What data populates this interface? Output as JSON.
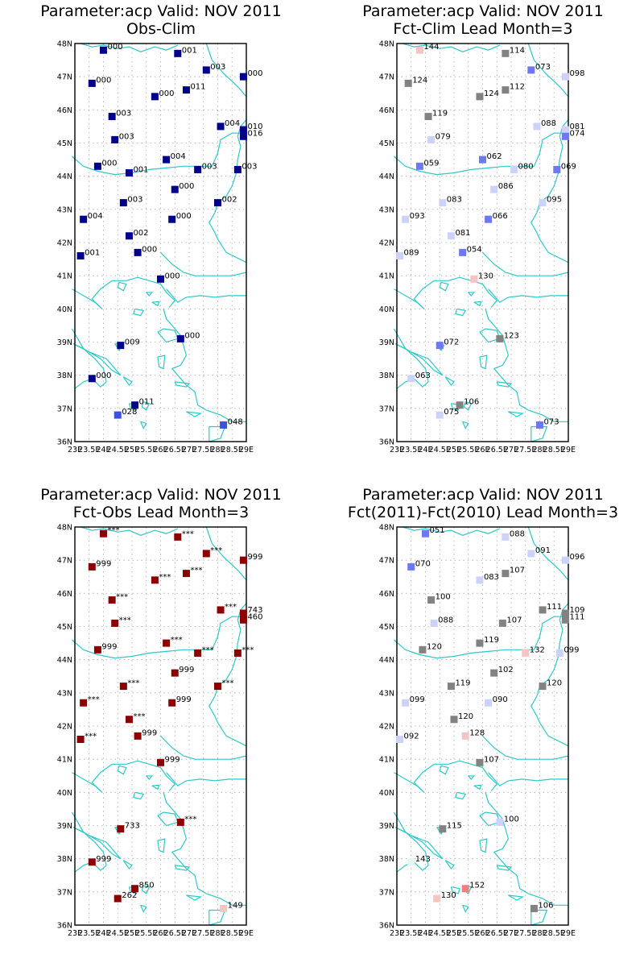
{
  "colors": {
    "coast": "#2ec8c8",
    "grid": "#aaaaaa"
  },
  "ylabels": [
    "36N",
    "37N",
    "38N",
    "39N",
    "40N",
    "41N",
    "42N",
    "43N",
    "44N",
    "45N",
    "46N",
    "47N",
    "48N"
  ],
  "xlabels": [
    "23E",
    "23.5E",
    "24E",
    "24.5E",
    "25E",
    "25.5E",
    "26E",
    "26.5E",
    "27E",
    "27.5E",
    "28E",
    "28.5E",
    "29E"
  ],
  "panels": [
    {
      "title1": "Parameter:acp Valid: NOV 2011",
      "title2": "Obs-Clim",
      "markers": [
        {
          "lon": 24.0,
          "lat": 47.8,
          "color": "#00008b",
          "label": "000"
        },
        {
          "lon": 26.6,
          "lat": 47.7,
          "color": "#00008b",
          "label": "001"
        },
        {
          "lon": 27.6,
          "lat": 47.2,
          "color": "#00008b",
          "label": "003"
        },
        {
          "lon": 28.9,
          "lat": 47.0,
          "color": "#00008b",
          "label": "000"
        },
        {
          "lon": 23.6,
          "lat": 46.8,
          "color": "#00008b",
          "label": "000"
        },
        {
          "lon": 25.8,
          "lat": 46.4,
          "color": "#00008b",
          "label": "000"
        },
        {
          "lon": 26.9,
          "lat": 46.6,
          "color": "#00008b",
          "label": "011"
        },
        {
          "lon": 24.3,
          "lat": 45.8,
          "color": "#00008b",
          "label": "003"
        },
        {
          "lon": 28.1,
          "lat": 45.5,
          "color": "#00008b",
          "label": "004"
        },
        {
          "lon": 28.9,
          "lat": 45.4,
          "color": "#00008b",
          "label": "010"
        },
        {
          "lon": 28.9,
          "lat": 45.2,
          "color": "#00008b",
          "label": "016"
        },
        {
          "lon": 24.4,
          "lat": 45.1,
          "color": "#00008b",
          "label": "003"
        },
        {
          "lon": 26.2,
          "lat": 44.5,
          "color": "#00008b",
          "label": "004"
        },
        {
          "lon": 23.8,
          "lat": 44.3,
          "color": "#00008b",
          "label": "000"
        },
        {
          "lon": 24.9,
          "lat": 44.1,
          "color": "#00008b",
          "label": "001"
        },
        {
          "lon": 27.3,
          "lat": 44.2,
          "color": "#00008b",
          "label": "003"
        },
        {
          "lon": 28.7,
          "lat": 44.2,
          "color": "#00008b",
          "label": "003"
        },
        {
          "lon": 26.5,
          "lat": 43.6,
          "color": "#00008b",
          "label": "000"
        },
        {
          "lon": 24.7,
          "lat": 43.2,
          "color": "#00008b",
          "label": "003"
        },
        {
          "lon": 28.0,
          "lat": 43.2,
          "color": "#00008b",
          "label": "002"
        },
        {
          "lon": 23.3,
          "lat": 42.7,
          "color": "#00008b",
          "label": "004"
        },
        {
          "lon": 26.4,
          "lat": 42.7,
          "color": "#00008b",
          "label": "000"
        },
        {
          "lon": 24.9,
          "lat": 42.2,
          "color": "#00008b",
          "label": "002"
        },
        {
          "lon": 25.2,
          "lat": 41.7,
          "color": "#00008b",
          "label": "000"
        },
        {
          "lon": 23.2,
          "lat": 41.6,
          "color": "#00008b",
          "label": "001"
        },
        {
          "lon": 26.0,
          "lat": 40.9,
          "color": "#00008b",
          "label": "000"
        },
        {
          "lon": 26.7,
          "lat": 39.1,
          "color": "#00008b",
          "label": "000"
        },
        {
          "lon": 24.6,
          "lat": 38.9,
          "color": "#00008b",
          "label": "009"
        },
        {
          "lon": 23.6,
          "lat": 37.9,
          "color": "#00008b",
          "label": "000"
        },
        {
          "lon": 25.1,
          "lat": 37.1,
          "color": "#00008b",
          "label": "011"
        },
        {
          "lon": 24.5,
          "lat": 36.8,
          "color": "#3c50e6",
          "label": "028"
        },
        {
          "lon": 28.2,
          "lat": 36.5,
          "color": "#3c50e6",
          "label": "048"
        }
      ]
    },
    {
      "title1": "Parameter:acp Valid: NOV 2011",
      "title2": "Fct-Clim Lead Month=3",
      "markers": [
        {
          "lon": 23.8,
          "lat": 47.8,
          "color": "#f7c4c4",
          "label": "144"
        },
        {
          "lon": 26.8,
          "lat": 47.7,
          "color": "#828282",
          "label": "114"
        },
        {
          "lon": 27.7,
          "lat": 47.2,
          "color": "#6e78f0",
          "label": "073"
        },
        {
          "lon": 28.9,
          "lat": 47.0,
          "color": "#cdd2fa",
          "label": "098"
        },
        {
          "lon": 23.4,
          "lat": 46.8,
          "color": "#828282",
          "label": "124"
        },
        {
          "lon": 25.9,
          "lat": 46.4,
          "color": "#828282",
          "label": "124"
        },
        {
          "lon": 26.8,
          "lat": 46.6,
          "color": "#828282",
          "label": "112"
        },
        {
          "lon": 24.1,
          "lat": 45.8,
          "color": "#828282",
          "label": "119"
        },
        {
          "lon": 27.9,
          "lat": 45.5,
          "color": "#cdd2fa",
          "label": "088"
        },
        {
          "lon": 28.9,
          "lat": 45.4,
          "color": "#cdd2fa",
          "label": "081"
        },
        {
          "lon": 28.9,
          "lat": 45.2,
          "color": "#6e78f0",
          "label": "074"
        },
        {
          "lon": 24.2,
          "lat": 45.1,
          "color": "#cdd2fa",
          "label": "079"
        },
        {
          "lon": 26.0,
          "lat": 44.5,
          "color": "#6e78f0",
          "label": "062"
        },
        {
          "lon": 27.1,
          "lat": 44.2,
          "color": "#cdd2fa",
          "label": "080"
        },
        {
          "lon": 28.6,
          "lat": 44.2,
          "color": "#6e78f0",
          "label": "069"
        },
        {
          "lon": 23.8,
          "lat": 44.3,
          "color": "#6e78f0",
          "label": "059"
        },
        {
          "lon": 26.4,
          "lat": 43.6,
          "color": "#cdd2fa",
          "label": "086"
        },
        {
          "lon": 24.6,
          "lat": 43.2,
          "color": "#cdd2fa",
          "label": "083"
        },
        {
          "lon": 28.1,
          "lat": 43.2,
          "color": "#cdd2fa",
          "label": "095"
        },
        {
          "lon": 23.3,
          "lat": 42.7,
          "color": "#cdd2fa",
          "label": "093"
        },
        {
          "lon": 26.2,
          "lat": 42.7,
          "color": "#6e78f0",
          "label": "066"
        },
        {
          "lon": 24.9,
          "lat": 42.2,
          "color": "#cdd2fa",
          "label": "081"
        },
        {
          "lon": 25.3,
          "lat": 41.7,
          "color": "#6e78f0",
          "label": "054"
        },
        {
          "lon": 23.1,
          "lat": 41.6,
          "color": "#cdd2fa",
          "label": "089"
        },
        {
          "lon": 25.7,
          "lat": 40.9,
          "color": "#f7c4c4",
          "label": "130"
        },
        {
          "lon": 26.6,
          "lat": 39.1,
          "color": "#828282",
          "label": "123"
        },
        {
          "lon": 24.5,
          "lat": 38.9,
          "color": "#6e78f0",
          "label": "072"
        },
        {
          "lon": 23.5,
          "lat": 37.9,
          "color": "#cdd2fa",
          "label": "063"
        },
        {
          "lon": 25.2,
          "lat": 37.1,
          "color": "#828282",
          "label": "106"
        },
        {
          "lon": 24.5,
          "lat": 36.8,
          "color": "#cdd2fa",
          "label": "075"
        },
        {
          "lon": 28.0,
          "lat": 36.5,
          "color": "#6e78f0",
          "label": "073"
        }
      ]
    },
    {
      "title1": "Parameter:acp Valid: NOV 2011",
      "title2": "Fct-Obs Lead Month=3",
      "markers": [
        {
          "lon": 24.0,
          "lat": 47.8,
          "color": "#8b0000",
          "label": "***"
        },
        {
          "lon": 26.6,
          "lat": 47.7,
          "color": "#8b0000",
          "label": "***"
        },
        {
          "lon": 27.6,
          "lat": 47.2,
          "color": "#8b0000",
          "label": "***"
        },
        {
          "lon": 28.9,
          "lat": 47.0,
          "color": "#8b0000",
          "label": "999"
        },
        {
          "lon": 23.6,
          "lat": 46.8,
          "color": "#8b0000",
          "label": "999"
        },
        {
          "lon": 25.8,
          "lat": 46.4,
          "color": "#8b0000",
          "label": "***"
        },
        {
          "lon": 26.9,
          "lat": 46.6,
          "color": "#8b0000",
          "label": "***"
        },
        {
          "lon": 24.3,
          "lat": 45.8,
          "color": "#8b0000",
          "label": "***"
        },
        {
          "lon": 28.1,
          "lat": 45.5,
          "color": "#8b0000",
          "label": "***"
        },
        {
          "lon": 28.9,
          "lat": 45.4,
          "color": "#8b0000",
          "label": "743"
        },
        {
          "lon": 28.9,
          "lat": 45.2,
          "color": "#8b0000",
          "label": "460"
        },
        {
          "lon": 24.4,
          "lat": 45.1,
          "color": "#8b0000",
          "label": "***"
        },
        {
          "lon": 26.2,
          "lat": 44.5,
          "color": "#8b0000",
          "label": "***"
        },
        {
          "lon": 23.8,
          "lat": 44.3,
          "color": "#8b0000",
          "label": "999"
        },
        {
          "lon": 27.3,
          "lat": 44.2,
          "color": "#8b0000",
          "label": "***"
        },
        {
          "lon": 28.7,
          "lat": 44.2,
          "color": "#8b0000",
          "label": "***"
        },
        {
          "lon": 26.5,
          "lat": 43.6,
          "color": "#8b0000",
          "label": "999"
        },
        {
          "lon": 24.7,
          "lat": 43.2,
          "color": "#8b0000",
          "label": "***"
        },
        {
          "lon": 28.0,
          "lat": 43.2,
          "color": "#8b0000",
          "label": "***"
        },
        {
          "lon": 23.3,
          "lat": 42.7,
          "color": "#8b0000",
          "label": "***"
        },
        {
          "lon": 26.4,
          "lat": 42.7,
          "color": "#8b0000",
          "label": "999"
        },
        {
          "lon": 24.9,
          "lat": 42.2,
          "color": "#8b0000",
          "label": "***"
        },
        {
          "lon": 25.2,
          "lat": 41.7,
          "color": "#8b0000",
          "label": "999"
        },
        {
          "lon": 23.2,
          "lat": 41.6,
          "color": "#8b0000",
          "label": "***"
        },
        {
          "lon": 26.0,
          "lat": 40.9,
          "color": "#8b0000",
          "label": "999"
        },
        {
          "lon": 26.7,
          "lat": 39.1,
          "color": "#8b0000",
          "label": "***"
        },
        {
          "lon": 24.6,
          "lat": 38.9,
          "color": "#8b0000",
          "label": "733"
        },
        {
          "lon": 23.6,
          "lat": 37.9,
          "color": "#8b0000",
          "label": "999"
        },
        {
          "lon": 25.1,
          "lat": 37.1,
          "color": "#8b0000",
          "label": "850"
        },
        {
          "lon": 24.5,
          "lat": 36.8,
          "color": "#8b0000",
          "label": "262"
        },
        {
          "lon": 28.2,
          "lat": 36.5,
          "color": "#f7c4c4",
          "label": "149"
        }
      ]
    },
    {
      "title1": "Parameter:acp Valid: NOV 2011",
      "title2": "Fct(2011)-Fct(2010) Lead Month=3",
      "markers": [
        {
          "lon": 24.0,
          "lat": 47.8,
          "color": "#6e78f0",
          "label": "051"
        },
        {
          "lon": 26.8,
          "lat": 47.7,
          "color": "#cdd2fa",
          "label": "088"
        },
        {
          "lon": 27.7,
          "lat": 47.2,
          "color": "#cdd2fa",
          "label": "091"
        },
        {
          "lon": 28.9,
          "lat": 47.0,
          "color": "#cdd2fa",
          "label": "096"
        },
        {
          "lon": 23.5,
          "lat": 46.8,
          "color": "#6e78f0",
          "label": "070"
        },
        {
          "lon": 25.9,
          "lat": 46.4,
          "color": "#cdd2fa",
          "label": "083"
        },
        {
          "lon": 26.8,
          "lat": 46.6,
          "color": "#828282",
          "label": "107"
        },
        {
          "lon": 24.2,
          "lat": 45.8,
          "color": "#828282",
          "label": "100"
        },
        {
          "lon": 28.1,
          "lat": 45.5,
          "color": "#828282",
          "label": "111"
        },
        {
          "lon": 28.9,
          "lat": 45.4,
          "color": "#828282",
          "label": "109"
        },
        {
          "lon": 28.9,
          "lat": 45.2,
          "color": "#828282",
          "label": "111"
        },
        {
          "lon": 24.3,
          "lat": 45.1,
          "color": "#cdd2fa",
          "label": "088"
        },
        {
          "lon": 26.7,
          "lat": 45.1,
          "color": "#828282",
          "label": "107"
        },
        {
          "lon": 25.9,
          "lat": 44.5,
          "color": "#828282",
          "label": "119"
        },
        {
          "lon": 27.5,
          "lat": 44.2,
          "color": "#f7c4c4",
          "label": "132"
        },
        {
          "lon": 28.7,
          "lat": 44.2,
          "color": "#cdd2fa",
          "label": "099"
        },
        {
          "lon": 23.9,
          "lat": 44.3,
          "color": "#828282",
          "label": "120"
        },
        {
          "lon": 26.4,
          "lat": 43.6,
          "color": "#828282",
          "label": "102"
        },
        {
          "lon": 24.9,
          "lat": 43.2,
          "color": "#828282",
          "label": "119"
        },
        {
          "lon": 28.1,
          "lat": 43.2,
          "color": "#828282",
          "label": "120"
        },
        {
          "lon": 23.3,
          "lat": 42.7,
          "color": "#cdd2fa",
          "label": "099"
        },
        {
          "lon": 26.2,
          "lat": 42.7,
          "color": "#cdd2fa",
          "label": "090"
        },
        {
          "lon": 25.0,
          "lat": 42.2,
          "color": "#828282",
          "label": "120"
        },
        {
          "lon": 25.4,
          "lat": 41.7,
          "color": "#f7c4c4",
          "label": "128"
        },
        {
          "lon": 23.1,
          "lat": 41.6,
          "color": "#cdd2fa",
          "label": "092"
        },
        {
          "lon": 25.9,
          "lat": 40.9,
          "color": "#828282",
          "label": "107"
        },
        {
          "lon": 26.6,
          "lat": 39.1,
          "color": "#cdd2fa",
          "label": "100"
        },
        {
          "lon": 24.6,
          "lat": 38.9,
          "color": "#828282",
          "label": "115"
        },
        {
          "lon": 23.5,
          "lat": 37.9,
          "color": "#e6f5f0",
          "label": "143"
        },
        {
          "lon": 25.4,
          "lat": 37.1,
          "color": "#f08080",
          "label": "152"
        },
        {
          "lon": 24.4,
          "lat": 36.8,
          "color": "#f7c4c4",
          "label": "130"
        },
        {
          "lon": 27.8,
          "lat": 36.5,
          "color": "#828282",
          "label": "106"
        }
      ]
    }
  ]
}
